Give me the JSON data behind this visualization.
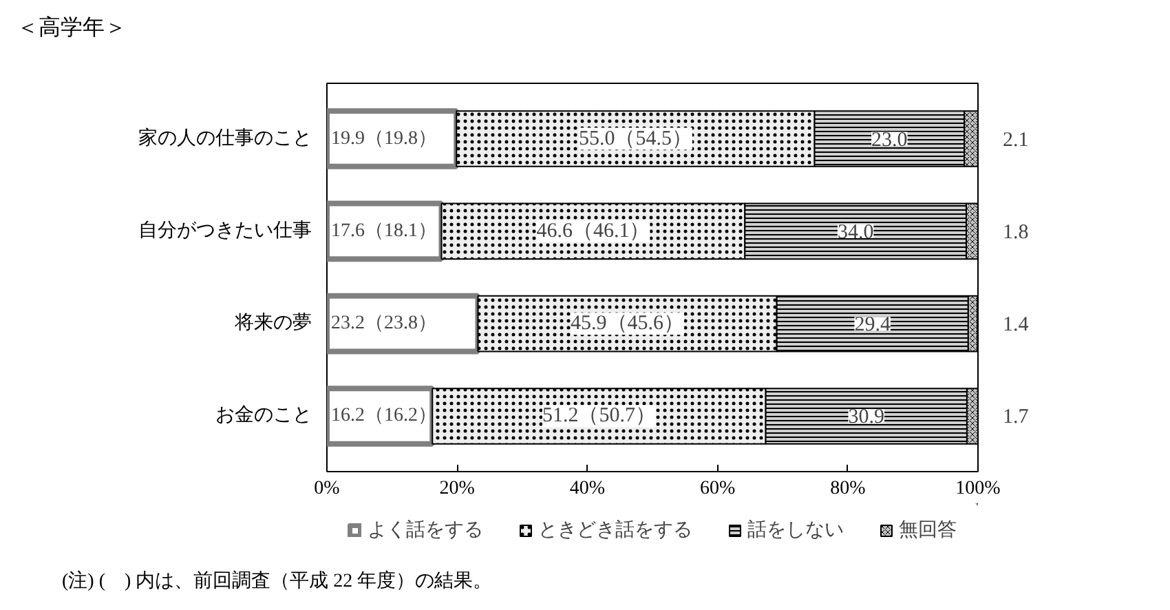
{
  "chart_data": {
    "type": "bar",
    "orientation": "horizontal",
    "stacked": true,
    "title": "＜高学年＞",
    "categories": [
      "家の人の仕事のこと",
      "自分がつきたい仕事",
      "将来の夢",
      "お金のこと"
    ],
    "series": [
      {
        "name": "よく話をする",
        "color": "#808080",
        "values": [
          19.9,
          17.6,
          23.2,
          16.2
        ],
        "value_labels": [
          "19.9（19.8）",
          "17.6（18.1）",
          "23.2（23.8）",
          "16.2（16.2）"
        ]
      },
      {
        "name": "ときどき話をする",
        "color": "#eeeeee",
        "values": [
          55.0,
          46.6,
          45.9,
          51.2
        ],
        "value_labels": [
          "55.0（54.5）",
          "46.6（46.1）",
          "45.9（45.6）",
          "51.2（50.7）"
        ]
      },
      {
        "name": "話をしない",
        "color": "#d0d0d0",
        "values": [
          23.0,
          34.0,
          29.4,
          30.9
        ],
        "value_labels": [
          "23.0",
          "34.0",
          "29.4",
          "30.9"
        ]
      },
      {
        "name": "無回答",
        "color": "#c0c0c0",
        "values": [
          2.1,
          1.8,
          1.4,
          1.7
        ],
        "value_labels": [
          "2.1",
          "1.8",
          "1.4",
          "1.7"
        ]
      }
    ],
    "xlim": [
      0,
      100
    ],
    "xticks": [
      {
        "value": 0,
        "label": "0%"
      },
      {
        "value": 20,
        "label": "20%"
      },
      {
        "value": 40,
        "label": "40%"
      },
      {
        "value": 60,
        "label": "60%"
      },
      {
        "value": 80,
        "label": "80%"
      },
      {
        "value": 100,
        "label": "100%"
      }
    ],
    "grid": false,
    "legend": "bottom",
    "annotations": [
      "(注) (　) 内は、前回調査（平成 22 年度）の結果。"
    ]
  }
}
